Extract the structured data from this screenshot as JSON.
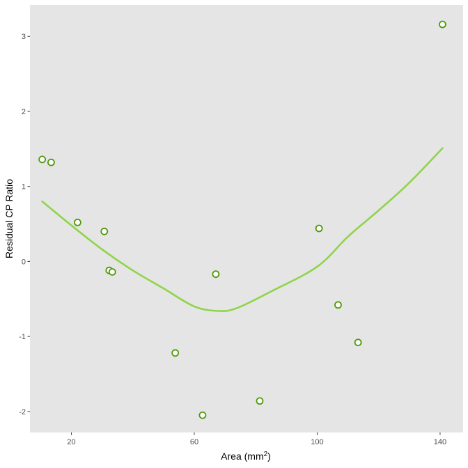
{
  "chart_data": {
    "type": "scatter",
    "title": "",
    "xlabel": "Area (mm",
    "xlabel_sup": "2",
    "xlabel_suffix": ")",
    "ylabel": "Residual CP Ratio",
    "xlim": [
      6.5,
      147.5
    ],
    "ylim": [
      -2.28,
      3.42
    ],
    "x_ticks": [
      20,
      60,
      100,
      140
    ],
    "y_ticks": [
      -2,
      -1,
      0,
      1,
      2,
      3
    ],
    "grid": false,
    "panel_background": "#e5e5e5",
    "series": [
      {
        "points": [
          {
            "x": 10.5,
            "y": 1.36
          },
          {
            "x": 13.4,
            "y": 1.32
          },
          {
            "x": 22.0,
            "y": 0.52
          },
          {
            "x": 30.7,
            "y": 0.4
          },
          {
            "x": 32.3,
            "y": -0.12
          },
          {
            "x": 33.3,
            "y": -0.14
          },
          {
            "x": 53.8,
            "y": -1.22
          },
          {
            "x": 62.7,
            "y": -2.05
          },
          {
            "x": 67.0,
            "y": -0.17
          },
          {
            "x": 81.3,
            "y": -1.86
          },
          {
            "x": 100.6,
            "y": 0.44
          },
          {
            "x": 106.8,
            "y": -0.58
          },
          {
            "x": 113.3,
            "y": -1.08
          },
          {
            "x": 140.8,
            "y": 3.16
          }
        ],
        "point_color": "#4e9a06"
      },
      {
        "type": "smooth",
        "x": [
          10.5,
          20,
          30,
          40,
          50,
          60,
          68,
          74,
          85,
          100,
          110,
          120,
          130,
          140.8
        ],
        "y": [
          0.8,
          0.48,
          0.16,
          -0.12,
          -0.36,
          -0.6,
          -0.66,
          -0.62,
          -0.4,
          -0.07,
          0.33,
          0.68,
          1.05,
          1.51
        ],
        "color": "#8fd44a"
      }
    ]
  }
}
